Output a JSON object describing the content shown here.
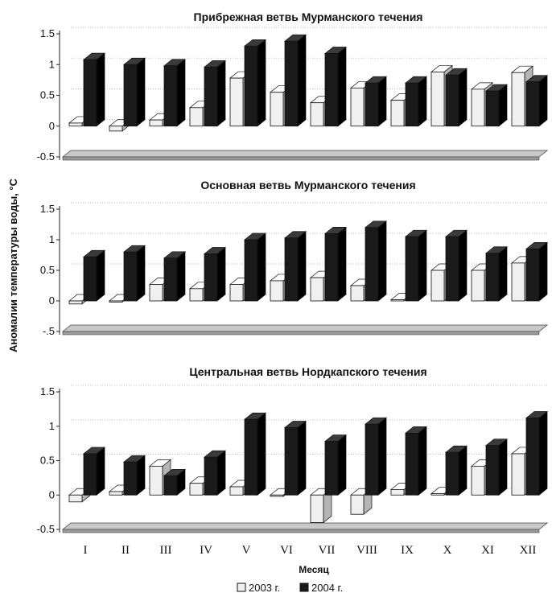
{
  "y_axis_label": "Аномалии температуры воды, °C",
  "x_axis_label": "Месяц",
  "legend": [
    {
      "label": "2003 г.",
      "color": "#f0f0f0"
    },
    {
      "label": "2004 г.",
      "color": "#1a1a1a"
    }
  ],
  "chart_data": [
    {
      "type": "bar",
      "title": "Прибрежная ветвь Мурманского течения",
      "categories": [
        "I",
        "II",
        "III",
        "IV",
        "V",
        "VI",
        "VII",
        "VIII",
        "IX",
        "X",
        "XI",
        "XII"
      ],
      "series": [
        {
          "name": "2003 г.",
          "values": [
            0.05,
            -0.08,
            0.1,
            0.3,
            0.78,
            0.55,
            0.38,
            0.62,
            0.42,
            0.88,
            0.6,
            0.87
          ]
        },
        {
          "name": "2004 г.",
          "values": [
            1.08,
            1.0,
            0.98,
            0.96,
            1.3,
            1.38,
            1.18,
            0.7,
            0.7,
            0.83,
            0.57,
            0.72
          ]
        }
      ],
      "yticks": [
        -0.5,
        0,
        0.5,
        1,
        1.5
      ],
      "ytick_labels": [
        "-0.5",
        "0",
        "0.5",
        "1",
        "1.5"
      ],
      "ylim": [
        -0.5,
        1.5
      ]
    },
    {
      "type": "bar",
      "title": "Основная ветвь Мурманского течения",
      "categories": [
        "I",
        "II",
        "III",
        "IV",
        "V",
        "VI",
        "VII",
        "VIII",
        "IX",
        "X",
        "XI",
        "XII"
      ],
      "series": [
        {
          "name": "2003 г.",
          "values": [
            -0.05,
            0.0,
            0.27,
            0.2,
            0.27,
            0.33,
            0.38,
            0.25,
            0.02,
            0.5,
            0.5,
            0.62
          ]
        },
        {
          "name": "2004 г.",
          "values": [
            0.72,
            0.8,
            0.7,
            0.77,
            1.0,
            1.03,
            1.1,
            1.2,
            1.05,
            1.05,
            0.78,
            0.85
          ]
        }
      ],
      "yticks": [
        -0.5,
        0,
        0.5,
        1,
        1.5
      ],
      "ytick_labels": [
        "-.5",
        "0",
        "0.5",
        "1",
        "1.5"
      ],
      "ylim": [
        -0.5,
        1.5
      ]
    },
    {
      "type": "bar",
      "title": "Центральная ветвь Нордкапского течения",
      "categories": [
        "I",
        "II",
        "III",
        "IV",
        "V",
        "VI",
        "VII",
        "VIII",
        "IX",
        "X",
        "XI",
        "XII"
      ],
      "series": [
        {
          "name": "2003 г.",
          "values": [
            -0.1,
            0.05,
            0.42,
            0.17,
            0.12,
            -0.02,
            -0.4,
            -0.28,
            0.08,
            0.02,
            0.42,
            0.6
          ]
        },
        {
          "name": "2004 г.",
          "values": [
            0.6,
            0.48,
            0.28,
            0.55,
            1.1,
            0.98,
            0.78,
            1.03,
            0.9,
            0.62,
            0.72,
            1.12
          ]
        }
      ],
      "yticks": [
        -0.5,
        0,
        0.5,
        1,
        1.5
      ],
      "ytick_labels": [
        "-0.5",
        "0",
        "0.5",
        "1",
        "1.5"
      ],
      "ylim": [
        -0.5,
        1.5
      ]
    }
  ]
}
